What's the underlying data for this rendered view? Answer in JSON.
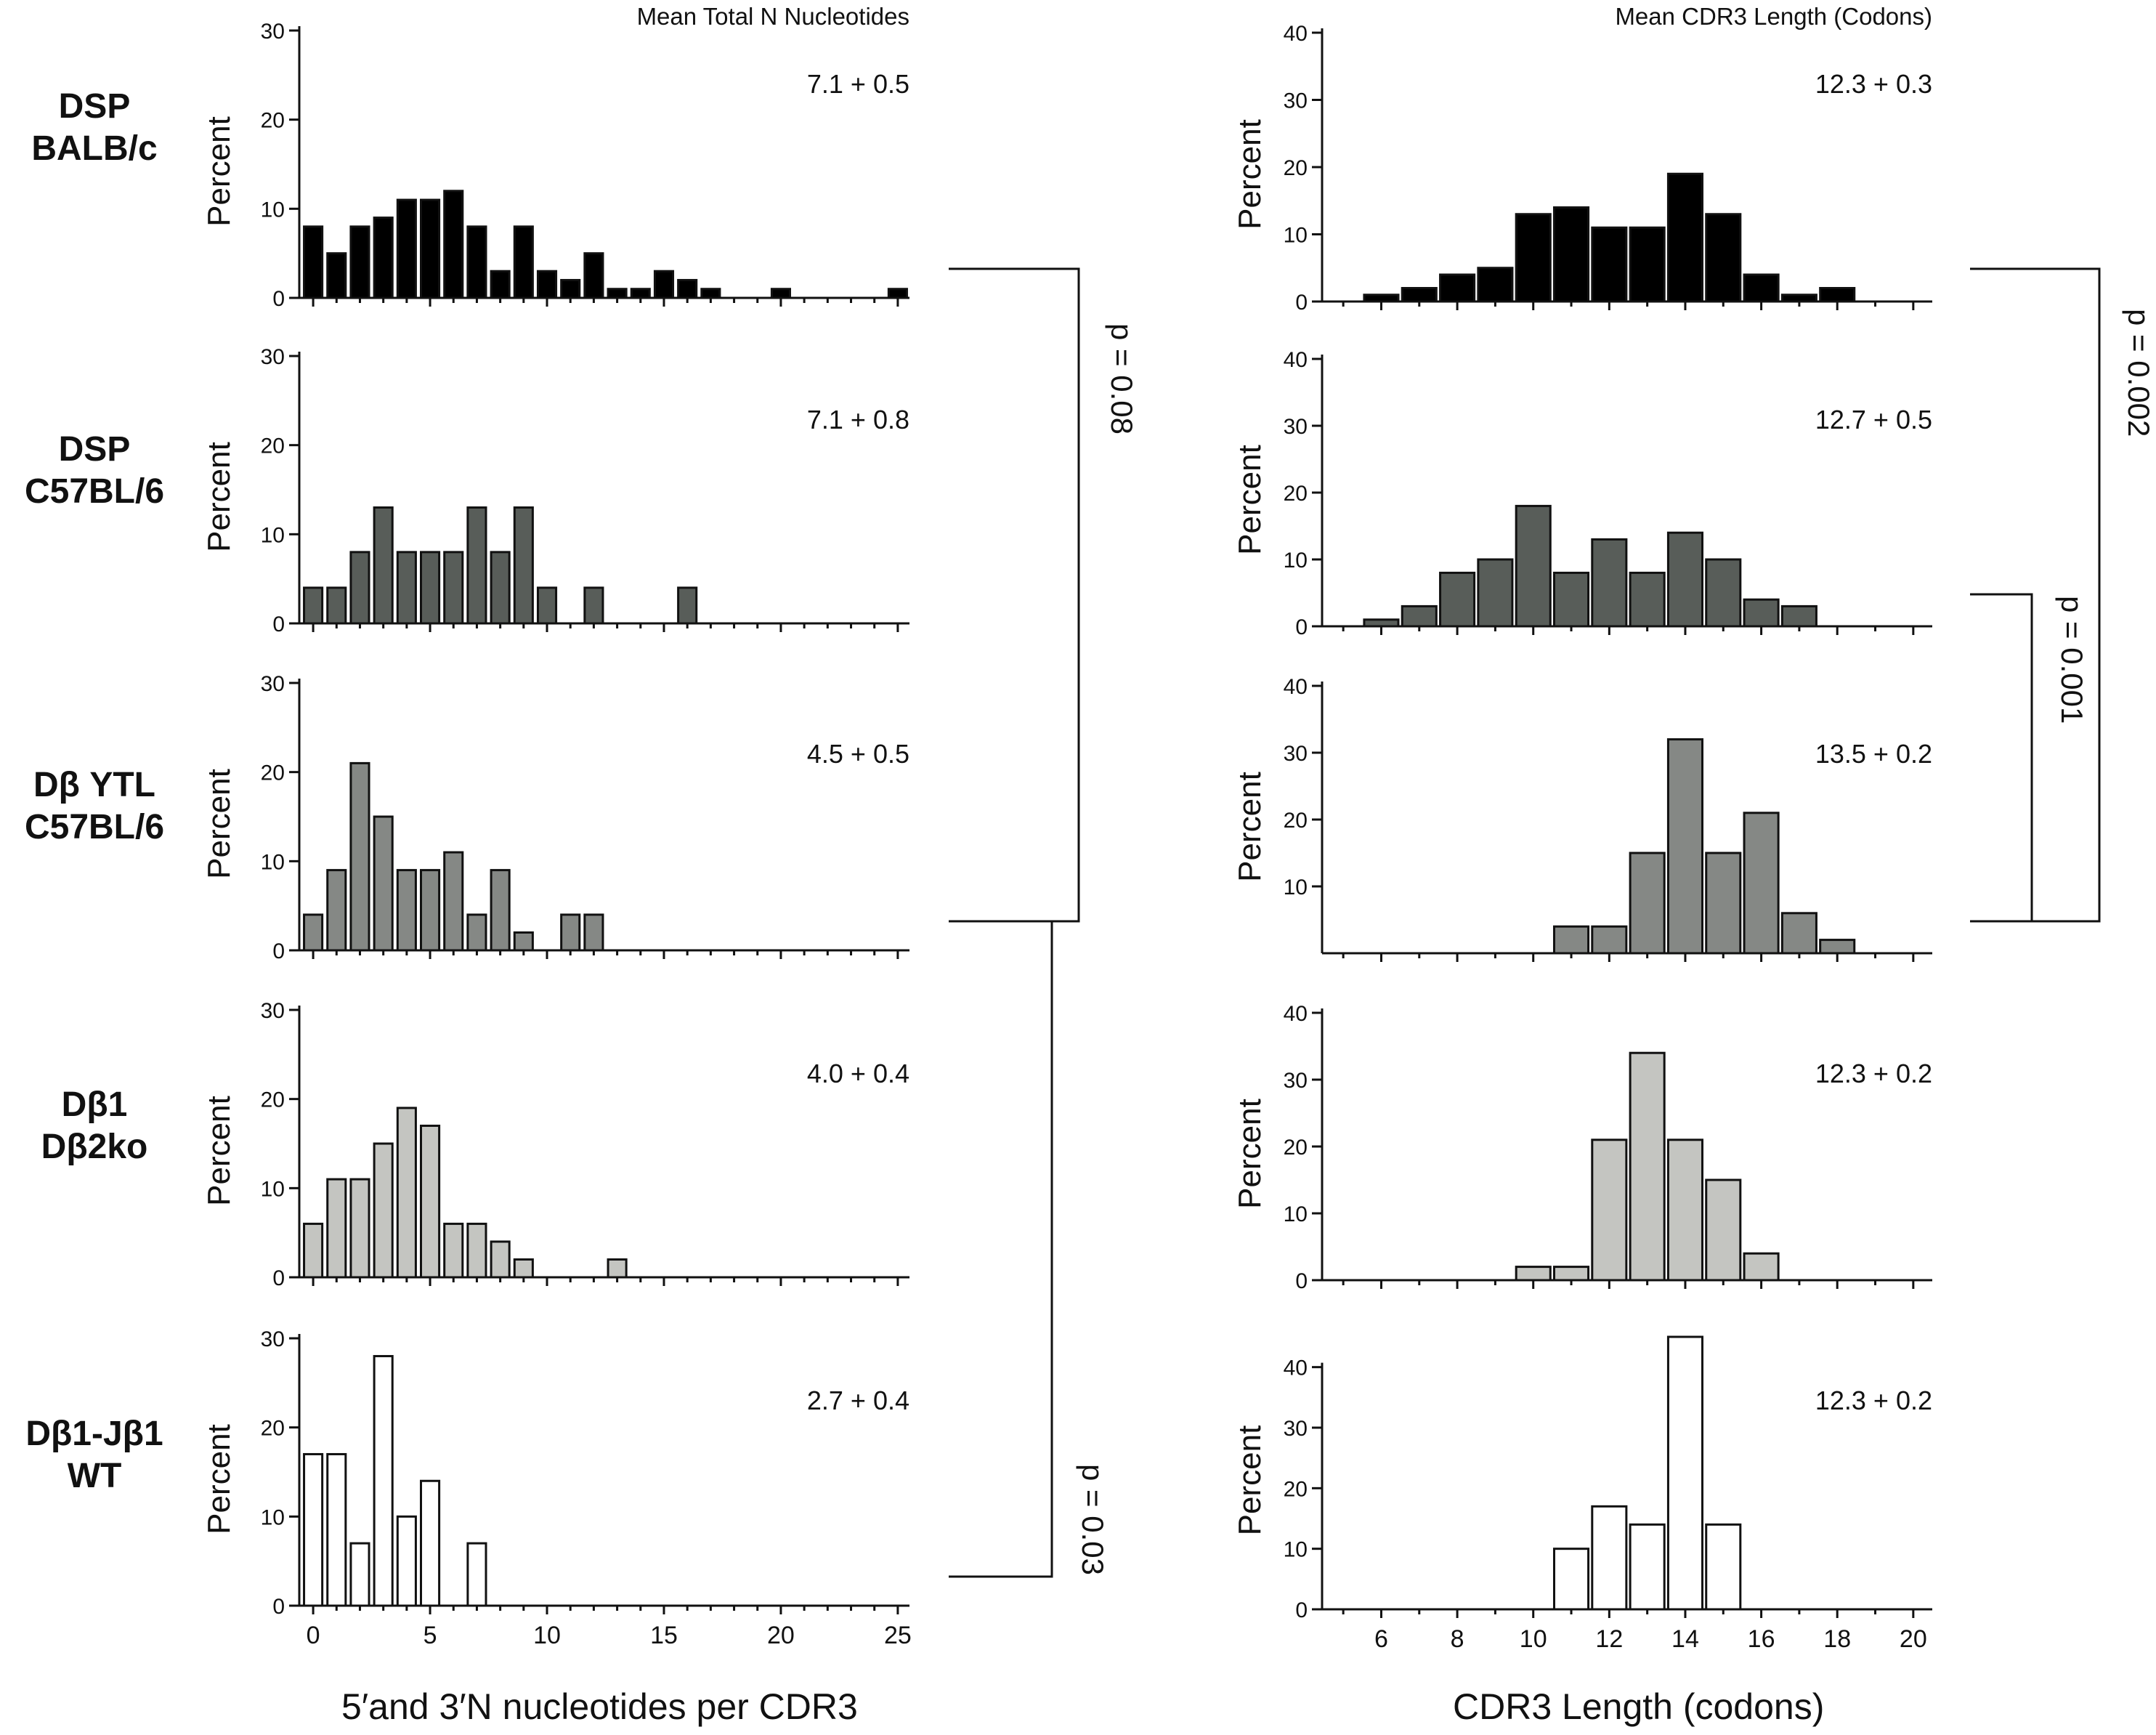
{
  "figure": {
    "left_header": "Mean Total N Nucleotides",
    "right_header": "Mean CDR3 Length (Codons)",
    "left_xlabel": "5′and 3′N nucleotides per CDR3",
    "right_xlabel": "CDR3 Length (codons)",
    "ylabel": "Percent",
    "colors": {
      "axis": "#111111",
      "edge": "#111111"
    }
  },
  "groups": [
    {
      "line1": "DSP",
      "line2": "BALB/c",
      "fill": "#000000"
    },
    {
      "line1": "DSP",
      "line2": "C57BL/6",
      "fill": "#585d59"
    },
    {
      "line1": "Dβ YTL",
      "line2": "C57BL/6",
      "fill": "#858885"
    },
    {
      "line1": "Dβ1",
      "line2": "Dβ2ko",
      "fill": "#c4c5c1"
    },
    {
      "line1": "Dβ1-Jβ1",
      "line2": "WT",
      "fill": "#ffffff"
    }
  ],
  "brackets": [
    {
      "label": "p = 0.08"
    },
    {
      "label": "p = 0.03"
    },
    {
      "label": "p = 0.002"
    },
    {
      "label": "p = 0.001"
    }
  ],
  "chart_data": [
    {
      "type": "bar",
      "panel": "N nucleotides",
      "group": "DSP BALB/c",
      "xlabel": "5′and 3′N nucleotides per CDR3",
      "ylabel": "Percent",
      "xlim": [
        -0.5,
        25.5
      ],
      "ylim": [
        0,
        30
      ],
      "yticks": [
        0,
        10,
        20,
        30
      ],
      "xticks": [
        0,
        5,
        10,
        15,
        20,
        25
      ],
      "show_xticklabels": false,
      "annotation": "7.1 + 0.5",
      "x": [
        0,
        1,
        2,
        3,
        4,
        5,
        6,
        7,
        8,
        9,
        10,
        11,
        12,
        13,
        14,
        15,
        16,
        17,
        20,
        25
      ],
      "values": [
        8,
        5,
        8,
        9,
        11,
        11,
        12,
        8,
        3,
        8,
        3,
        2,
        5,
        1,
        1,
        3,
        2,
        1,
        1,
        1
      ]
    },
    {
      "type": "bar",
      "panel": "N nucleotides",
      "group": "DSP C57BL/6",
      "xlabel": "5′and 3′N nucleotides per CDR3",
      "ylabel": "Percent",
      "xlim": [
        -0.5,
        25.5
      ],
      "ylim": [
        0,
        30
      ],
      "yticks": [
        0,
        10,
        20,
        30
      ],
      "xticks": [
        0,
        5,
        10,
        15,
        20,
        25
      ],
      "show_xticklabels": false,
      "annotation": "7.1 + 0.8",
      "x": [
        0,
        1,
        2,
        3,
        4,
        5,
        6,
        7,
        8,
        9,
        10,
        12,
        16
      ],
      "values": [
        4,
        4,
        8,
        13,
        8,
        8,
        8,
        13,
        8,
        13,
        4,
        4,
        4
      ]
    },
    {
      "type": "bar",
      "panel": "N nucleotides",
      "group": "Dβ YTL C57BL/6",
      "xlabel": "5′and 3′N nucleotides per CDR3",
      "ylabel": "Percent",
      "xlim": [
        -0.5,
        25.5
      ],
      "ylim": [
        0,
        30
      ],
      "yticks": [
        0,
        10,
        20,
        30
      ],
      "xticks": [
        0,
        5,
        10,
        15,
        20,
        25
      ],
      "show_xticklabels": false,
      "annotation": "4.5 + 0.5",
      "x": [
        0,
        1,
        2,
        3,
        4,
        5,
        6,
        7,
        8,
        9,
        11,
        12
      ],
      "values": [
        4,
        9,
        21,
        15,
        9,
        9,
        11,
        4,
        9,
        2,
        4,
        4
      ]
    },
    {
      "type": "bar",
      "panel": "N nucleotides",
      "group": "Dβ1 Dβ2ko",
      "xlabel": "5′and 3′N nucleotides per CDR3",
      "ylabel": "Percent",
      "xlim": [
        -0.5,
        25.5
      ],
      "ylim": [
        0,
        30
      ],
      "yticks": [
        0,
        10,
        20,
        30
      ],
      "xticks": [
        0,
        5,
        10,
        15,
        20,
        25
      ],
      "show_xticklabels": false,
      "annotation": "4.0 + 0.4",
      "x": [
        0,
        1,
        2,
        3,
        4,
        5,
        6,
        7,
        8,
        9,
        13
      ],
      "values": [
        6,
        11,
        11,
        15,
        19,
        17,
        6,
        6,
        4,
        2,
        2
      ]
    },
    {
      "type": "bar",
      "panel": "N nucleotides",
      "group": "Dβ1-Jβ1 WT",
      "xlabel": "5′and 3′N nucleotides per CDR3",
      "ylabel": "Percent",
      "xlim": [
        -0.5,
        25.5
      ],
      "ylim": [
        0,
        30
      ],
      "yticks": [
        0,
        10,
        20,
        30
      ],
      "xticks": [
        0,
        5,
        10,
        15,
        20,
        25
      ],
      "show_xticklabels": true,
      "annotation": "2.7 + 0.4",
      "x": [
        0,
        1,
        2,
        3,
        4,
        5,
        7
      ],
      "values": [
        17,
        17,
        7,
        28,
        10,
        14,
        7
      ]
    },
    {
      "type": "bar",
      "panel": "CDR3 length",
      "group": "DSP BALB/c",
      "xlabel": "CDR3 Length (codons)",
      "ylabel": "Percent",
      "xlim": [
        4.5,
        20.5
      ],
      "ylim": [
        0,
        40
      ],
      "yticks": [
        0,
        10,
        20,
        30,
        40
      ],
      "xticks": [
        6,
        8,
        10,
        12,
        14,
        16,
        18,
        20
      ],
      "show_xticklabels": false,
      "annotation": "12.3 + 0.3",
      "x": [
        6,
        7,
        8,
        9,
        10,
        11,
        12,
        13,
        14,
        15,
        16,
        17,
        18
      ],
      "values": [
        1,
        2,
        4,
        5,
        13,
        14,
        11,
        11,
        19,
        13,
        4,
        1,
        2
      ]
    },
    {
      "type": "bar",
      "panel": "CDR3 length",
      "group": "DSP C57BL/6",
      "xlabel": "CDR3 Length (codons)",
      "ylabel": "Percent",
      "xlim": [
        4.5,
        20.5
      ],
      "ylim": [
        0,
        40
      ],
      "yticks": [
        0,
        10,
        20,
        30,
        40
      ],
      "xticks": [
        6,
        8,
        10,
        12,
        14,
        16,
        18,
        20
      ],
      "show_xticklabels": false,
      "annotation": "12.7 + 0.5",
      "x": [
        6,
        7,
        8,
        9,
        10,
        11,
        12,
        13,
        14,
        15,
        16,
        17
      ],
      "values": [
        1,
        3,
        8,
        10,
        18,
        8,
        13,
        8,
        14,
        10,
        4,
        3
      ]
    },
    {
      "type": "bar",
      "panel": "CDR3 length",
      "group": "Dβ YTL C57BL/6",
      "xlabel": "CDR3 Length (codons)",
      "ylabel": "Percent",
      "xlim": [
        4.5,
        20.5
      ],
      "ylim": [
        0,
        40
      ],
      "yticks": [
        10,
        20,
        30,
        40
      ],
      "xticks": [
        6,
        8,
        10,
        12,
        14,
        16,
        18,
        20
      ],
      "show_xticklabels": false,
      "annotation": "13.5 + 0.2",
      "x": [
        11,
        12,
        13,
        14,
        15,
        16,
        17,
        18
      ],
      "values": [
        4,
        4,
        15,
        32,
        15,
        21,
        6,
        2
      ]
    },
    {
      "type": "bar",
      "panel": "CDR3 length",
      "group": "Dβ1 Dβ2ko",
      "xlabel": "CDR3 Length (codons)",
      "ylabel": "Percent",
      "xlim": [
        4.5,
        20.5
      ],
      "ylim": [
        0,
        40
      ],
      "yticks": [
        0,
        10,
        20,
        30,
        40
      ],
      "xticks": [
        6,
        8,
        10,
        12,
        14,
        16,
        18,
        20
      ],
      "show_xticklabels": false,
      "annotation": "12.3 + 0.2",
      "x": [
        10,
        11,
        12,
        13,
        14,
        15,
        16
      ],
      "values": [
        2,
        2,
        21,
        34,
        21,
        15,
        4
      ]
    },
    {
      "type": "bar",
      "panel": "CDR3 length",
      "group": "Dβ1-Jβ1 WT",
      "xlabel": "CDR3 Length (codons)",
      "ylabel": "Percent",
      "xlim": [
        4.5,
        20.5
      ],
      "ylim": [
        0,
        45
      ],
      "yticks": [
        0,
        10,
        20,
        30,
        40
      ],
      "xticks": [
        6,
        8,
        10,
        12,
        14,
        16,
        18,
        20
      ],
      "show_xticklabels": true,
      "annotation": "12.3 + 0.2",
      "x": [
        11,
        12,
        13,
        14,
        15
      ],
      "values": [
        10,
        17,
        14,
        45,
        14
      ]
    }
  ]
}
